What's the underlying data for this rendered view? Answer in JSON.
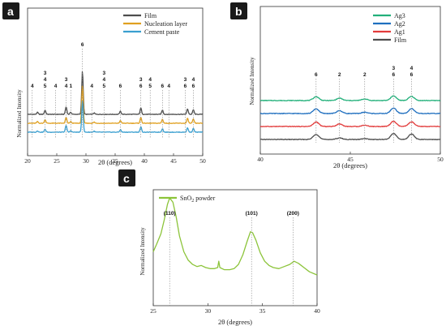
{
  "colors": {
    "film": "#4d4d4d",
    "nucleation": "#e0a020",
    "cement": "#3a9fd0",
    "ag3": "#22b07a",
    "ag2": "#1f6fbf",
    "ag1": "#e23b3b",
    "sno2": "#8cc43a"
  },
  "chart_data": [
    {
      "panel": "a",
      "type": "line",
      "xlabel": "2θ (degrees)",
      "ylabel": "Normalized Intensity",
      "xlim": [
        20,
        50
      ],
      "xticks": [
        "20",
        "25",
        "30",
        "35",
        "40",
        "45",
        "50"
      ],
      "legend_position": "top-right",
      "series": [
        {
          "name": "Film",
          "color_key": "film",
          "offset": 2.0,
          "peaks": [
            [
              21.7,
              1.2
            ],
            [
              23.0,
              2.5
            ],
            [
              26.6,
              4.5
            ],
            [
              27.4,
              1.3
            ],
            [
              29.4,
              26.0
            ],
            [
              31.4,
              0.8
            ],
            [
              35.9,
              1.8
            ],
            [
              39.4,
              3.8
            ],
            [
              43.1,
              2.6
            ],
            [
              47.4,
              3.2
            ],
            [
              48.4,
              2.8
            ]
          ]
        },
        {
          "name": "Nucleation layer",
          "color_key": "nucleation",
          "offset": 1.0,
          "peaks": [
            [
              21.7,
              1.0
            ],
            [
              23.0,
              2.2
            ],
            [
              26.6,
              3.5
            ],
            [
              27.4,
              1.0
            ],
            [
              29.4,
              23.0
            ],
            [
              31.4,
              0.7
            ],
            [
              35.9,
              1.6
            ],
            [
              39.4,
              3.5
            ],
            [
              43.1,
              2.4
            ],
            [
              47.4,
              2.9
            ],
            [
              48.4,
              2.5
            ]
          ]
        },
        {
          "name": "Cement paste",
          "color_key": "cement",
          "offset": 0.0,
          "peaks": [
            [
              21.7,
              0.8
            ],
            [
              23.0,
              1.8
            ],
            [
              26.6,
              4.2
            ],
            [
              27.4,
              0.9
            ],
            [
              29.4,
              19.0
            ],
            [
              31.4,
              0.6
            ],
            [
              35.9,
              1.5
            ],
            [
              39.4,
              3.2
            ],
            [
              43.1,
              2.1
            ],
            [
              47.4,
              2.6
            ],
            [
              48.4,
              2.3
            ]
          ]
        }
      ],
      "annotations": [
        {
          "x": 20.8,
          "lines": [
            "4"
          ]
        },
        {
          "x": 23.0,
          "lines": [
            "3",
            "4",
            "5"
          ]
        },
        {
          "x": 24.8,
          "lines": [
            "4"
          ]
        },
        {
          "x": 26.6,
          "lines": [
            "3",
            "4"
          ]
        },
        {
          "x": 27.4,
          "lines": [
            "1"
          ]
        },
        {
          "x": 29.4,
          "lines": [
            "6"
          ]
        },
        {
          "x": 31.0,
          "lines": [
            "4"
          ]
        },
        {
          "x": 33.1,
          "lines": [
            "3",
            "4",
            "5"
          ]
        },
        {
          "x": 35.9,
          "lines": [
            "6"
          ]
        },
        {
          "x": 39.4,
          "lines": [
            "3",
            "6"
          ]
        },
        {
          "x": 41.0,
          "lines": [
            "4",
            "5"
          ]
        },
        {
          "x": 43.1,
          "lines": [
            "6"
          ]
        },
        {
          "x": 44.2,
          "lines": [
            "4"
          ]
        },
        {
          "x": 47.0,
          "lines": [
            "3",
            "6"
          ]
        },
        {
          "x": 48.4,
          "lines": [
            "4",
            "6"
          ]
        }
      ]
    },
    {
      "panel": "b",
      "type": "line",
      "xlabel": "2θ (degrees)",
      "ylabel": "Normalized Intensity",
      "xlim": [
        40,
        50
      ],
      "xticks": [
        "40",
        "45",
        "50"
      ],
      "legend_position": "top-right",
      "series": [
        {
          "name": "Ag3",
          "color_key": "ag3",
          "offset": 3.0,
          "peaks": [
            [
              43.1,
              1.5
            ],
            [
              44.4,
              0.9
            ],
            [
              45.8,
              0.6
            ],
            [
              47.4,
              1.8
            ],
            [
              48.4,
              1.6
            ]
          ]
        },
        {
          "name": "Ag2",
          "color_key": "ag2",
          "offset": 2.0,
          "peaks": [
            [
              43.1,
              1.8
            ],
            [
              44.4,
              1.1
            ],
            [
              45.8,
              0.5
            ],
            [
              47.4,
              2.1
            ],
            [
              48.4,
              1.9
            ]
          ]
        },
        {
          "name": "Ag1",
          "color_key": "ag1",
          "offset": 1.0,
          "peaks": [
            [
              43.1,
              1.7
            ],
            [
              44.4,
              1.0
            ],
            [
              45.8,
              0.5
            ],
            [
              47.4,
              2.0
            ],
            [
              48.4,
              1.8
            ]
          ]
        },
        {
          "name": "Film",
          "color_key": "film",
          "offset": 0.0,
          "peaks": [
            [
              43.1,
              2.0
            ],
            [
              44.4,
              0.6
            ],
            [
              45.8,
              0.3
            ],
            [
              47.4,
              2.3
            ],
            [
              48.4,
              2.1
            ]
          ]
        }
      ],
      "annotations": [
        {
          "x": 43.1,
          "lines": [
            "6"
          ]
        },
        {
          "x": 44.4,
          "lines": [
            "2"
          ]
        },
        {
          "x": 45.8,
          "lines": [
            "2"
          ]
        },
        {
          "x": 47.4,
          "lines": [
            "3",
            "6"
          ]
        },
        {
          "x": 48.4,
          "lines": [
            "4",
            "6"
          ]
        }
      ]
    },
    {
      "panel": "c",
      "type": "line",
      "xlabel": "2θ (degrees)",
      "ylabel": "Normalized Intensity",
      "xlim": [
        25,
        40
      ],
      "xticks": [
        "25",
        "30",
        "35",
        "40"
      ],
      "legend_position": "top-left",
      "series": [
        {
          "name": "SnO2 powder",
          "color_key": "sno2",
          "points": [
            [
              25,
              45
            ],
            [
              25.3,
              52
            ],
            [
              25.7,
              62
            ],
            [
              26.0,
              75
            ],
            [
              26.3,
              90
            ],
            [
              26.5,
              96
            ],
            [
              26.8,
              92
            ],
            [
              27.1,
              78
            ],
            [
              27.4,
              60
            ],
            [
              27.8,
              45
            ],
            [
              28.2,
              37
            ],
            [
              28.6,
              33
            ],
            [
              29.0,
              31
            ],
            [
              29.4,
              32
            ],
            [
              29.8,
              30
            ],
            [
              30.2,
              29
            ],
            [
              30.6,
              29
            ],
            [
              30.9,
              30
            ],
            [
              31.0,
              36
            ],
            [
              31.1,
              30
            ],
            [
              31.5,
              28
            ],
            [
              32.0,
              28
            ],
            [
              32.4,
              29
            ],
            [
              32.8,
              33
            ],
            [
              33.2,
              42
            ],
            [
              33.6,
              55
            ],
            [
              33.9,
              64
            ],
            [
              34.1,
              63
            ],
            [
              34.4,
              56
            ],
            [
              34.8,
              44
            ],
            [
              35.2,
              36
            ],
            [
              35.6,
              32
            ],
            [
              36.0,
              30
            ],
            [
              36.5,
              29
            ],
            [
              37.0,
              31
            ],
            [
              37.5,
              33
            ],
            [
              37.9,
              36
            ],
            [
              38.3,
              34
            ],
            [
              38.8,
              30
            ],
            [
              39.3,
              26
            ],
            [
              40.0,
              23
            ]
          ]
        }
      ],
      "annotations": [
        {
          "x": 26.5,
          "label": "(110)"
        },
        {
          "x": 34.0,
          "label": "(101)"
        },
        {
          "x": 37.8,
          "label": "(200)"
        }
      ]
    }
  ],
  "legend_c_label_base": "SnO",
  "legend_c_label_sub": "2",
  "legend_c_label_tail": " powder"
}
